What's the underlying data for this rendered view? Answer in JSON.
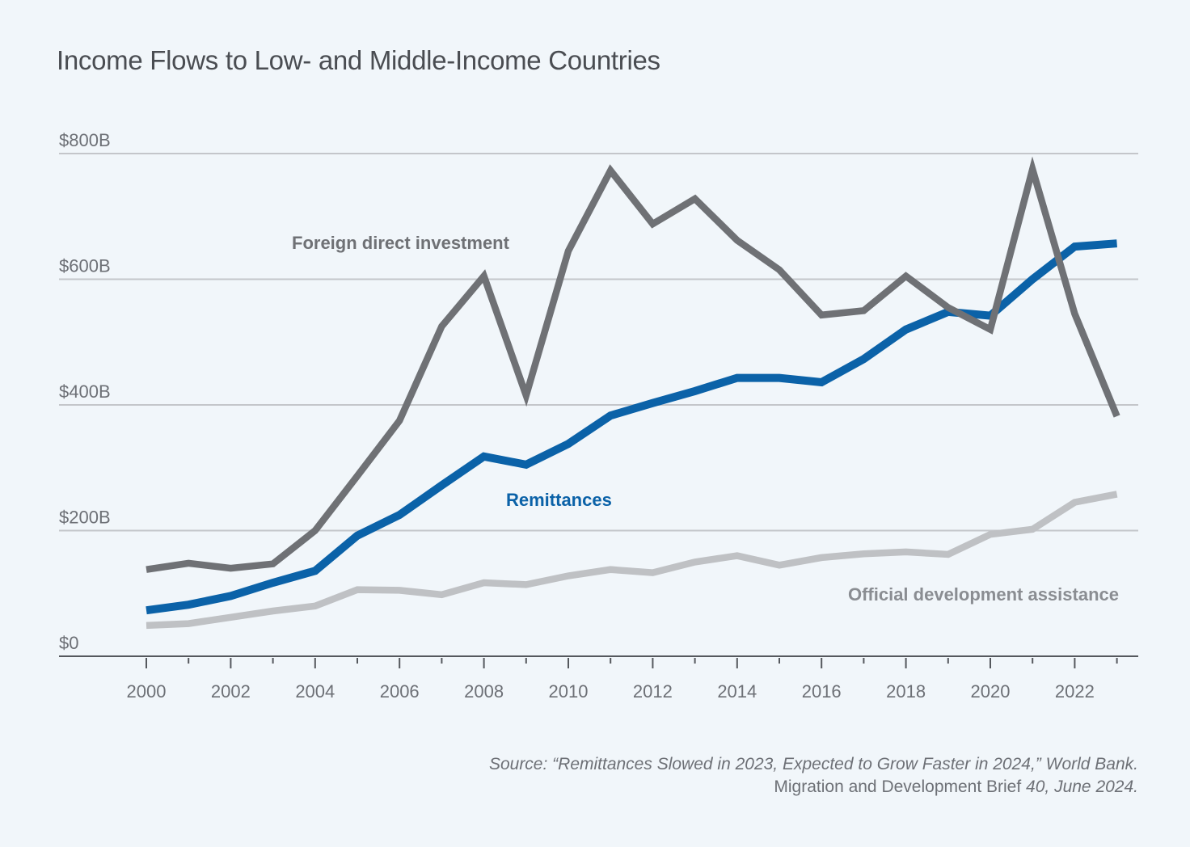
{
  "title": "Income Flows to Low- and Middle-Income Countries",
  "source": {
    "line1": "Source: “Remittances Slowed in 2023, Expected to Grow Faster in 2024,” World Bank.",
    "line2_plain": "Migration and Development Brief ",
    "line2_italic": "40, June 2024."
  },
  "colors": {
    "background": "#f1f6fa",
    "fdi": "#6f7175",
    "remittances": "#0b62a8",
    "oda": "#bfc1c4",
    "grid": "#c4c6ca",
    "axis": "#55585d",
    "tick_text": "#6d7076"
  },
  "chart_data": {
    "type": "line",
    "title": "Income Flows to Low- and Middle-Income Countries",
    "xlabel": "",
    "ylabel": "",
    "ylim": [
      0,
      800
    ],
    "y_ticks": [
      0,
      200,
      400,
      600,
      800
    ],
    "y_tick_labels": [
      "$0",
      "$200B",
      "$400B",
      "$600B",
      "$800B"
    ],
    "x": [
      2000,
      2001,
      2002,
      2003,
      2004,
      2005,
      2006,
      2007,
      2008,
      2009,
      2010,
      2011,
      2012,
      2013,
      2014,
      2015,
      2016,
      2017,
      2018,
      2019,
      2020,
      2021,
      2022,
      2023
    ],
    "x_tick_labels": [
      "2000",
      "2002",
      "2004",
      "2006",
      "2008",
      "2010",
      "2012",
      "2014",
      "2016",
      "2018",
      "2020",
      "2022"
    ],
    "grid": true,
    "legend": "inline labels",
    "series": [
      {
        "name": "Foreign direct investment",
        "key": "fdi",
        "values": [
          138,
          148,
          140,
          147,
          200,
          287,
          375,
          525,
          605,
          415,
          645,
          773,
          688,
          728,
          662,
          615,
          543,
          550,
          605,
          555,
          520,
          775,
          545,
          382
        ]
      },
      {
        "name": "Remittances",
        "key": "remittances",
        "values": [
          73,
          82,
          96,
          117,
          136,
          192,
          225,
          272,
          318,
          305,
          338,
          383,
          403,
          422,
          443,
          443,
          436,
          473,
          520,
          548,
          542,
          600,
          652,
          657
        ]
      },
      {
        "name": "Official development assistance",
        "key": "oda",
        "values": [
          49,
          52,
          62,
          72,
          80,
          106,
          105,
          98,
          117,
          114,
          128,
          138,
          133,
          150,
          160,
          145,
          157,
          163,
          166,
          162,
          194,
          202,
          245,
          258
        ]
      }
    ],
    "annotations": [
      {
        "text": "Foreign direct investment",
        "series": "fdi"
      },
      {
        "text": "Remittances",
        "series": "remittances"
      },
      {
        "text": "Official development assistance",
        "series": "oda"
      }
    ]
  }
}
